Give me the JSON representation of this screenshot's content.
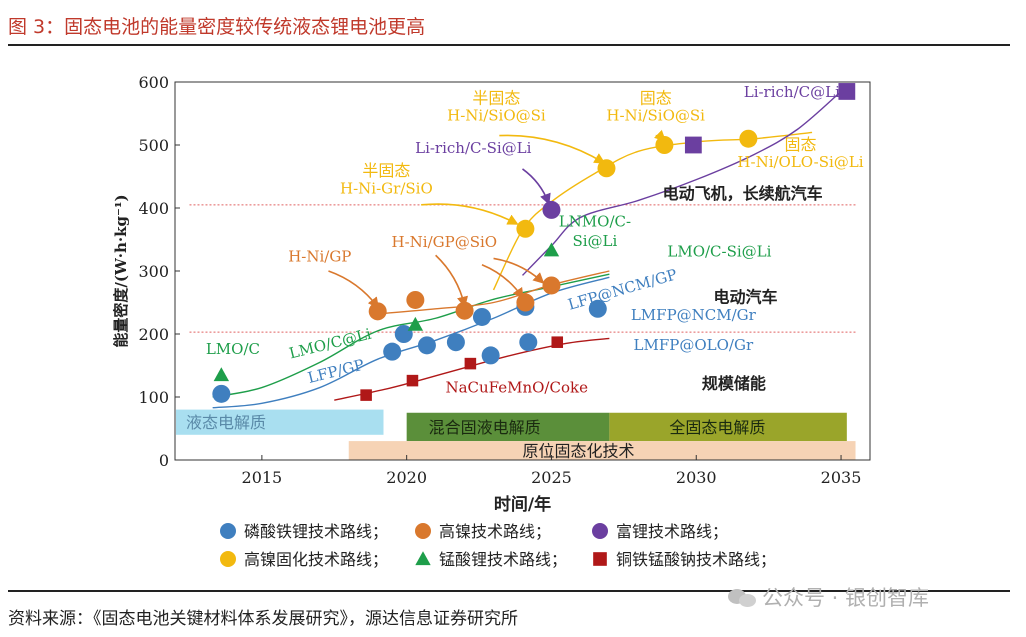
{
  "figure": {
    "title": "图 3：固态电池的能量密度较传统液态锂电池更高",
    "source": "资料来源：《固态电池关键材料体系发展研究》，源达信息证券研究所",
    "watermark": "公众号 · 银创智库"
  },
  "colors": {
    "title_red": "#c0392b",
    "lfp_blue": "#3f7fbf",
    "high_ni_orange": "#d9782d",
    "li_rich_purple": "#6b3fa0",
    "solid_yellow": "#f2b90f",
    "lmo_green": "#1e9e4a",
    "na_red": "#b01818",
    "band_liquid": "#a9dff0",
    "band_hybrid": "#5b8f3a",
    "band_solid": "#7f8a1e",
    "band_insitu": "#f6d3b5"
  },
  "chart_data": {
    "type": "scatter",
    "xlabel": "时间/年",
    "ylabel": "能量密度/(W·h·kg⁻¹)",
    "xlim": [
      2012,
      2036
    ],
    "ylim": [
      0,
      600
    ],
    "x_ticks": [
      2015,
      2020,
      2025,
      2030,
      2035
    ],
    "y_ticks": [
      0,
      100,
      200,
      300,
      400,
      500,
      600
    ],
    "grid": false,
    "legend_position": "bottom",
    "legend": [
      {
        "name": "磷酸铁锂技术路线；",
        "marker": "circle",
        "color": "#3f7fbf"
      },
      {
        "name": "高镍技术路线；",
        "marker": "circle",
        "color": "#d9782d"
      },
      {
        "name": "富锂技术路线；",
        "marker": "circle",
        "color": "#6b3fa0"
      },
      {
        "name": "高镍固化技术路线；",
        "marker": "circle",
        "color": "#f2b90f"
      },
      {
        "name": "锰酸锂技术路线；",
        "marker": "triangle",
        "color": "#1e9e4a"
      },
      {
        "name": "铜铁锰酸钠技术路线；",
        "marker": "square",
        "color": "#b01818"
      }
    ],
    "series": [
      {
        "route": "lfp",
        "marker": "circle",
        "color": "#3f7fbf",
        "points": [
          [
            2013.6,
            105
          ],
          [
            2019.5,
            172
          ],
          [
            2019.9,
            200
          ],
          [
            2020.7,
            182
          ],
          [
            2021.7,
            187
          ],
          [
            2022.6,
            227
          ],
          [
            2022.9,
            166
          ],
          [
            2024.1,
            243
          ],
          [
            2024.2,
            187
          ],
          [
            2026.6,
            240
          ]
        ]
      },
      {
        "route": "high_ni",
        "marker": "circle",
        "color": "#d9782d",
        "points": [
          [
            2019.0,
            236
          ],
          [
            2020.3,
            254
          ],
          [
            2022.0,
            237
          ],
          [
            2024.1,
            250
          ],
          [
            2025.0,
            277
          ]
        ]
      },
      {
        "route": "li_rich",
        "marker": "circle",
        "color": "#6b3fa0",
        "points": [
          [
            2025.0,
            397
          ]
        ]
      },
      {
        "route": "li_rich_solid",
        "marker": "square",
        "color": "#6b3fa0",
        "points": [
          [
            2029.9,
            500
          ],
          [
            2035.2,
            585
          ]
        ]
      },
      {
        "route": "solid_high_ni",
        "marker": "circle",
        "color": "#f2b90f",
        "points": [
          [
            2024.1,
            367
          ],
          [
            2026.9,
            463
          ],
          [
            2028.9,
            500
          ],
          [
            2031.8,
            510
          ]
        ]
      },
      {
        "route": "lmo",
        "marker": "triangle",
        "color": "#1e9e4a",
        "points": [
          [
            2013.6,
            135
          ],
          [
            2020.3,
            215
          ],
          [
            2025.0,
            333
          ]
        ]
      },
      {
        "route": "na",
        "marker": "square",
        "color": "#b01818",
        "points": [
          [
            2018.6,
            103
          ],
          [
            2020.2,
            126
          ],
          [
            2022.2,
            153
          ],
          [
            2025.2,
            187
          ]
        ]
      }
    ],
    "trend_curves": [
      {
        "route": "lfp",
        "color": "#3f7fbf",
        "points": [
          [
            2013.3,
            83
          ],
          [
            2015,
            90
          ],
          [
            2017,
            115
          ],
          [
            2019,
            160
          ],
          [
            2021,
            190
          ],
          [
            2023,
            225
          ],
          [
            2025,
            265
          ],
          [
            2027,
            290
          ]
        ]
      },
      {
        "route": "lmo",
        "color": "#1e9e4a",
        "points": [
          [
            2013.3,
            100
          ],
          [
            2015,
            115
          ],
          [
            2017,
            155
          ],
          [
            2019,
            205
          ],
          [
            2021,
            225
          ],
          [
            2023,
            255
          ],
          [
            2025,
            275
          ],
          [
            2027,
            295
          ]
        ]
      },
      {
        "route": "high_ni",
        "color": "#d9782d",
        "points": [
          [
            2019,
            232
          ],
          [
            2021,
            240
          ],
          [
            2023,
            250
          ],
          [
            2025,
            278
          ],
          [
            2027,
            300
          ]
        ]
      },
      {
        "route": "na",
        "color": "#b01818",
        "points": [
          [
            2017.5,
            95
          ],
          [
            2019.5,
            115
          ],
          [
            2021.5,
            140
          ],
          [
            2023.5,
            165
          ],
          [
            2025.5,
            185
          ],
          [
            2027,
            193
          ]
        ]
      },
      {
        "route": "solid_high_ni",
        "color": "#f2b90f",
        "points": [
          [
            2023,
            270
          ],
          [
            2024,
            365
          ],
          [
            2025,
            410
          ],
          [
            2026.5,
            455
          ],
          [
            2028,
            490
          ],
          [
            2030,
            505
          ],
          [
            2032,
            510
          ],
          [
            2034,
            520
          ]
        ]
      },
      {
        "route": "li_rich",
        "color": "#6b3fa0",
        "points": [
          [
            2024,
            293
          ],
          [
            2025,
            340
          ],
          [
            2026,
            385
          ],
          [
            2028,
            412
          ],
          [
            2030,
            445
          ],
          [
            2032,
            485
          ],
          [
            2033.5,
            525
          ],
          [
            2035,
            585
          ]
        ]
      }
    ],
    "reference_lines": [
      {
        "y": 405,
        "x_start": 2012.5,
        "x_end": 2035.5,
        "color": "#e06060",
        "style": "dotted"
      },
      {
        "y": 203,
        "x_start": 2012.5,
        "x_end": 2035.5,
        "color": "#e06060",
        "style": "dotted"
      }
    ],
    "bands": [
      {
        "label": "液态电解质",
        "x_start": 2012,
        "x_end": 2019.2,
        "y_start": 40,
        "y_end": 80,
        "color": "#a9dff0",
        "text_color": "#5a8aa8"
      },
      {
        "label": "混合固液电解质",
        "x_start": 2020,
        "x_end": 2027,
        "y_start": 30,
        "y_end": 75,
        "color": "#5b8f3a",
        "text_color": "#1a2a10"
      },
      {
        "label": "全固态电解质",
        "x_start": 2027,
        "x_end": 2035.2,
        "y_start": 30,
        "y_end": 75,
        "color": "#9aa52a",
        "text_color": "#1a2a10"
      },
      {
        "label": "原位固态化技术",
        "x_start": 2018,
        "x_end": 2035.5,
        "y_start": 0,
        "y_end": 30,
        "color": "#f6d3b5",
        "text_color": "#222"
      }
    ],
    "annotations": [
      {
        "text": "Li-rich/C@Li",
        "x": 2033.3,
        "y": 576,
        "color": "#6b3fa0"
      },
      {
        "text": "半固态",
        "x": 2023.1,
        "y": 566,
        "color": "#f2b90f"
      },
      {
        "text": "H-Ni/SiO@Si",
        "x": 2023.1,
        "y": 539,
        "color": "#f2b90f"
      },
      {
        "text": "固态",
        "x": 2028.6,
        "y": 566,
        "color": "#f2b90f"
      },
      {
        "text": "H-Ni/SiO@Si",
        "x": 2028.6,
        "y": 539,
        "color": "#f2b90f"
      },
      {
        "text": "Li-rich/C-Si@Li",
        "x": 2022.3,
        "y": 487,
        "color": "#6b3fa0"
      },
      {
        "text": "半固态",
        "x": 2019.3,
        "y": 451,
        "color": "#f2b90f"
      },
      {
        "text": "H-Ni-Gr/SiO",
        "x": 2019.3,
        "y": 423,
        "color": "#f2b90f"
      },
      {
        "text": "固态",
        "x": 2033.6,
        "y": 492,
        "color": "#f2b90f"
      },
      {
        "text": "H-Ni/OLO-Si@Li",
        "x": 2033.6,
        "y": 465,
        "color": "#f2b90f"
      },
      {
        "text": "电动飞机，长续航汽车",
        "x": 2031.6,
        "y": 414,
        "color": "#222"
      },
      {
        "text": "LNMO/C-",
        "x": 2026.5,
        "y": 371,
        "color": "#1e9e4a"
      },
      {
        "text": "Si@Li",
        "x": 2026.5,
        "y": 340,
        "color": "#1e9e4a"
      },
      {
        "text": "H-Ni/GP@SiO",
        "x": 2021.3,
        "y": 338,
        "color": "#d9782d"
      },
      {
        "text": "LMO/C-Si@Li",
        "x": 2030.8,
        "y": 323,
        "color": "#1e9e4a"
      },
      {
        "text": "H-Ni/GP",
        "x": 2017.0,
        "y": 315,
        "color": "#d9782d"
      },
      {
        "text": "LFP@NCM/GP",
        "x": 2027.5,
        "y": 263,
        "color": "#3f7fbf",
        "rotate": -16
      },
      {
        "text": "电动汽车",
        "x": 2031.7,
        "y": 250,
        "color": "#222"
      },
      {
        "text": "LMFP@NCM/Gr",
        "x": 2029.9,
        "y": 222,
        "color": "#3f7fbf"
      },
      {
        "text": "LMO/C",
        "x": 2014.0,
        "y": 168,
        "color": "#1e9e4a"
      },
      {
        "text": "LMO/C@Li",
        "x": 2017.4,
        "y": 177,
        "color": "#1e9e4a",
        "rotate": -14
      },
      {
        "text": "LMFP@OLO/Gr",
        "x": 2029.9,
        "y": 175,
        "color": "#3f7fbf"
      },
      {
        "text": "LFP/GP",
        "x": 2017.6,
        "y": 133,
        "color": "#3f7fbf",
        "rotate": -14
      },
      {
        "text": "NaCuFeMnO/Coke",
        "x": 2023.8,
        "y": 107,
        "color": "#b01818"
      },
      {
        "text": "规模储能",
        "x": 2031.3,
        "y": 113,
        "color": "#222"
      }
    ],
    "arrows": [
      {
        "color": "#d9782d",
        "from": [
          2017.3,
          300
        ],
        "to": [
          2019.0,
          243
        ]
      },
      {
        "color": "#d9782d",
        "from": [
          2021.0,
          325
        ],
        "to": [
          2022.0,
          245
        ]
      },
      {
        "color": "#d9782d",
        "from": [
          2022.6,
          310
        ],
        "to": [
          2024.0,
          258
        ]
      },
      {
        "color": "#d9782d",
        "from": [
          2023.0,
          320
        ],
        "to": [
          2024.7,
          282
        ]
      },
      {
        "color": "#f2b90f",
        "from": [
          2023.2,
          515
        ],
        "to": [
          2026.8,
          472
        ]
      },
      {
        "color": "#f2b90f",
        "from": [
          2028.6,
          515
        ],
        "to": [
          2028.9,
          508
        ]
      },
      {
        "color": "#f2b90f",
        "from": [
          2020.5,
          405
        ],
        "to": [
          2023.8,
          375
        ]
      },
      {
        "color": "#6b3fa0",
        "from": [
          2024.0,
          462
        ],
        "to": [
          2024.9,
          408
        ]
      }
    ]
  }
}
